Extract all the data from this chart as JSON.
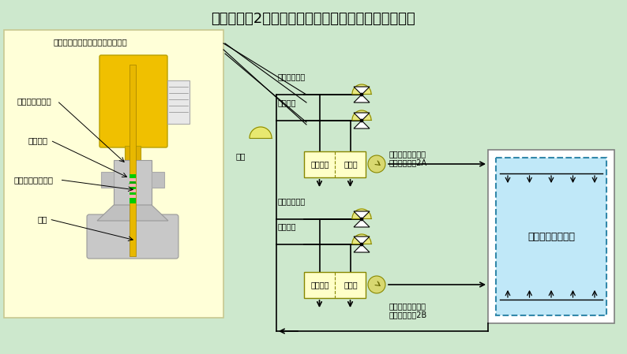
{
  "title": "伊方発電所2号機　安全補機開閉器室空調概略系統図",
  "bg_color": "#cde8cd",
  "left_panel_color": "#ffffd8",
  "left_panel_label": "補助蒸気制御弁グランド部拡大図",
  "labels_left": [
    "グランド押さえ",
    "グランド",
    "グランドパッキン",
    "弁棒"
  ],
  "steam_label": "補助蒸気系統",
  "water_label": "冷水系統",
  "fan_A_label": "安全補機開閉器室\n　空調ファン2A",
  "fan_B_label": "安全補機開閉器室\n　空調ファン2B",
  "room_label": "安全補機開閉器室",
  "outside_air_label": "外気",
  "filter_label": "フィルタ",
  "coil_label": "コイル"
}
